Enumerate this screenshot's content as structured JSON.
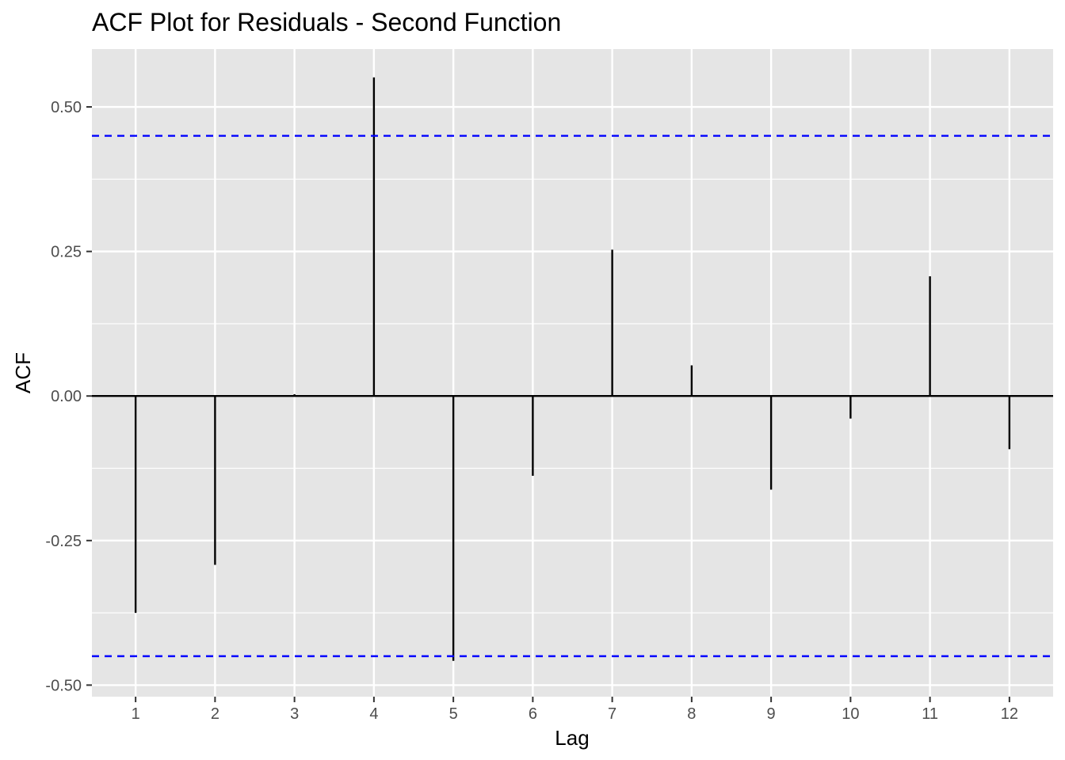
{
  "chart_data": {
    "type": "bar",
    "title": "ACF Plot for Residuals - Second Function",
    "xlabel": "Lag",
    "ylabel": "ACF",
    "x": [
      1,
      2,
      3,
      4,
      5,
      6,
      7,
      8,
      9,
      10,
      11,
      12
    ],
    "x_tick_labels": [
      "1",
      "2",
      "3",
      "4",
      "5",
      "6",
      "7",
      "8",
      "9",
      "10",
      "11",
      "12"
    ],
    "values": [
      -0.375,
      -0.292,
      0.003,
      0.551,
      -0.458,
      -0.138,
      0.253,
      0.053,
      -0.162,
      -0.039,
      0.207,
      -0.092
    ],
    "confidence_bounds": [
      0.45,
      -0.45
    ],
    "xlim": [
      0.45,
      12.55
    ],
    "ylim": [
      -0.52,
      0.6
    ],
    "y_ticks": [
      -0.5,
      -0.25,
      0.0,
      0.25,
      0.5
    ],
    "y_tick_labels": [
      "-0.50",
      "-0.25",
      "0.00",
      "0.25",
      "0.50"
    ],
    "grid": true,
    "legend": "none",
    "colors": {
      "panel_background": "#e5e5e5",
      "grid": "#ffffff",
      "bars": "#000000",
      "confidence_line": "#0000ff",
      "zero_line": "#000000"
    }
  }
}
